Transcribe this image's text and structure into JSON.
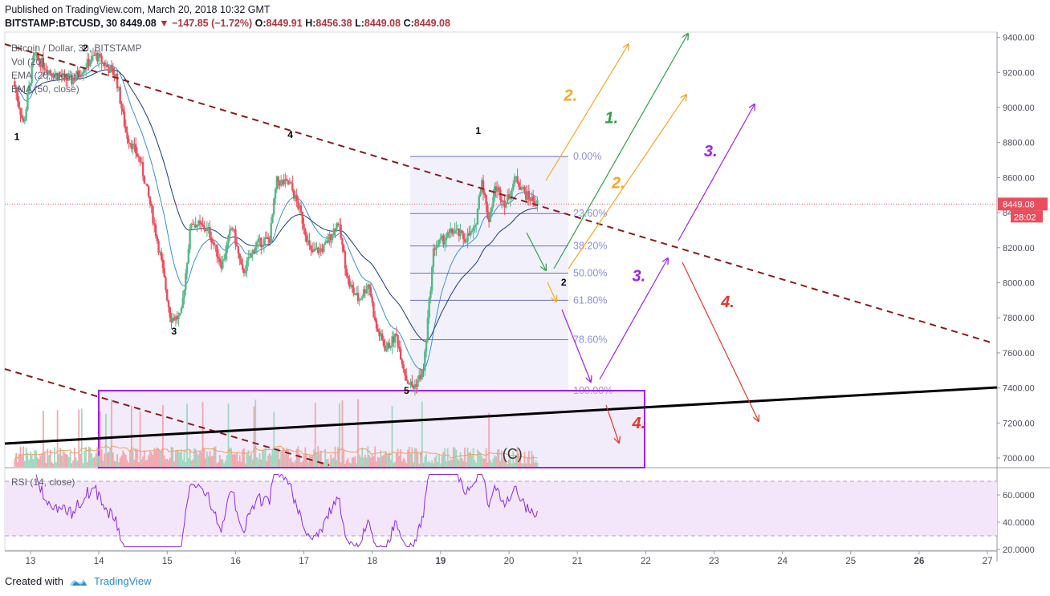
{
  "header": {
    "published": "Published on TradingView.com, March 20, 2018 10:32 GMT",
    "symbol": "BITSTAMP:BTCUSD, 30",
    "last": "8449.08",
    "change": "−147.85 (−1.72%)",
    "open_label": "O:",
    "open": "8449.91",
    "high_label": "H:",
    "high": "8456.38",
    "low_label": "L:",
    "low": "8449.08",
    "close_label": "C:",
    "close": "8449.08"
  },
  "legend": {
    "title": "Bitcoin / Dollar, 30, BITSTAMP",
    "vol": "Vol (20)",
    "ema20": "EMA (20, close)",
    "ema50": "EMA (50, close)",
    "rsi": "RSI (14, close)"
  },
  "footer": {
    "created": "Created with",
    "brand": "TradingView"
  },
  "colors": {
    "up": "#53b987",
    "down": "#eb4d5c",
    "ema20": "#3a8fd8",
    "ema50": "#1a3a7a",
    "trend": "#8b1a1a",
    "support": "#000000",
    "fib_box": "#e9e8f8",
    "box": "#a020f0",
    "rsi": "#8a2be2",
    "orange": "#f5a623",
    "green": "#2ea043",
    "purple": "#a020f0",
    "red": "#e8352b",
    "price_tag": "#eb4d5c"
  },
  "chart_data": {
    "type": "candlestick",
    "ylim": [
      6920,
      9480
    ],
    "y_ticks": [
      "9400.00",
      "9200.00",
      "9000.00",
      "8800.00",
      "8600.00",
      "8400.00",
      "8200.00",
      "8000.00",
      "7800.00",
      "7600.00",
      "7400.00",
      "7200.00",
      "7000.00"
    ],
    "y_tick_values": [
      9400,
      9200,
      9000,
      8800,
      8600,
      8400,
      8200,
      8000,
      7800,
      7600,
      7400,
      7200,
      7000
    ],
    "x_ticks": [
      "13",
      "14",
      "15",
      "16",
      "17",
      "18",
      "19",
      "20",
      "21",
      "22",
      "23",
      "24",
      "25",
      "26",
      "27"
    ],
    "x_bold": [
      "19",
      "26"
    ],
    "current_price": "8449.08",
    "countdown": "28:02",
    "fib_levels": [
      {
        "label": "0.00%",
        "price": 8720
      },
      {
        "label": "23.60%",
        "price": 8395
      },
      {
        "label": "38.20%",
        "price": 8210
      },
      {
        "label": "50.00%",
        "price": 8055
      },
      {
        "label": "61.80%",
        "price": 7900
      },
      {
        "label": "78.60%",
        "price": 7675
      },
      {
        "label": "100.00%",
        "price": 7385
      }
    ],
    "waves": [
      {
        "label": "1",
        "day": 12.8,
        "price": 8815
      },
      {
        "label": "2",
        "day": 13.8,
        "price": 9320
      },
      {
        "label": "3",
        "day": 15.1,
        "price": 7705
      },
      {
        "label": "4",
        "day": 16.8,
        "price": 8825
      },
      {
        "label": "5",
        "day": 18.5,
        "price": 7365
      },
      {
        "label": "1",
        "day": 19.55,
        "price": 8850
      },
      {
        "label": "2",
        "day": 20.8,
        "price": 7985
      },
      {
        "label": "(C)",
        "day": 20.05,
        "price": 6995
      }
    ],
    "scenario_labels": [
      {
        "label": "2.",
        "color": "orange",
        "day": 20.9,
        "price": 9040
      },
      {
        "label": "1.",
        "color": "green",
        "day": 21.5,
        "price": 8910
      },
      {
        "label": "2.",
        "color": "orange",
        "day": 21.6,
        "price": 8540
      },
      {
        "label": "3.",
        "color": "purple",
        "day": 22.95,
        "price": 8720
      },
      {
        "label": "3.",
        "color": "purple",
        "day": 21.9,
        "price": 8010
      },
      {
        "label": "4.",
        "color": "red",
        "day": 23.2,
        "price": 7860
      },
      {
        "label": "4.",
        "color": "red",
        "day": 21.9,
        "price": 7170
      }
    ],
    "rsi_levels": [
      "60.0000",
      "40.0000",
      "20.0000"
    ],
    "rsi_level_values": [
      60,
      40,
      20
    ],
    "rsi_band": [
      30,
      70
    ]
  }
}
